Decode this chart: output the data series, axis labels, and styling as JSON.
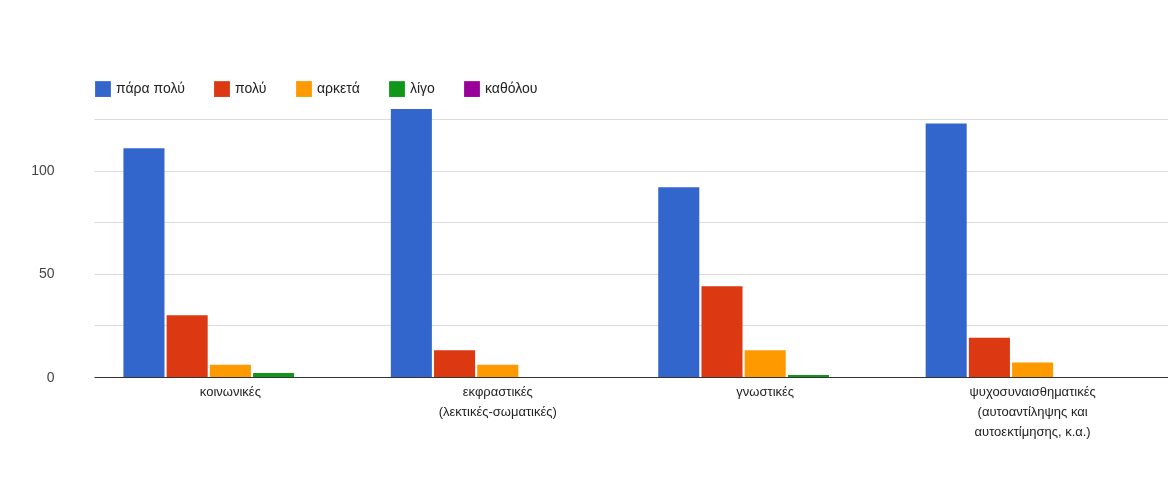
{
  "chart_data": {
    "type": "bar",
    "categories": [
      "κοινωνικές",
      "εκφραστικές (λεκτικές-σωματικές)",
      "γνωστικές",
      "ψυχοσυναισθηματικές (αυτοαντίληψης και αυτοεκτίμησης, κ.α.)"
    ],
    "series": [
      {
        "name": "πάρα πολύ",
        "color": "#3366cc",
        "values": [
          111,
          130,
          92,
          123
        ]
      },
      {
        "name": "πολύ",
        "color": "#dc3912",
        "values": [
          30,
          13,
          44,
          19
        ]
      },
      {
        "name": "αρκετά",
        "color": "#ff9900",
        "values": [
          6,
          6,
          13,
          7
        ]
      },
      {
        "name": "λίγο",
        "color": "#109618",
        "values": [
          2,
          0,
          1,
          0
        ]
      },
      {
        "name": "καθόλου",
        "color": "#990099",
        "values": [
          0,
          0,
          0,
          0
        ]
      }
    ],
    "ylim": [
      0,
      130
    ],
    "yticks": [
      0,
      {
        "value": 25,
        "label": null
      },
      50,
      {
        "value": 75,
        "label": null
      },
      100,
      {
        "value": 125,
        "label": null
      }
    ],
    "grid": "y",
    "legend": "top left"
  }
}
